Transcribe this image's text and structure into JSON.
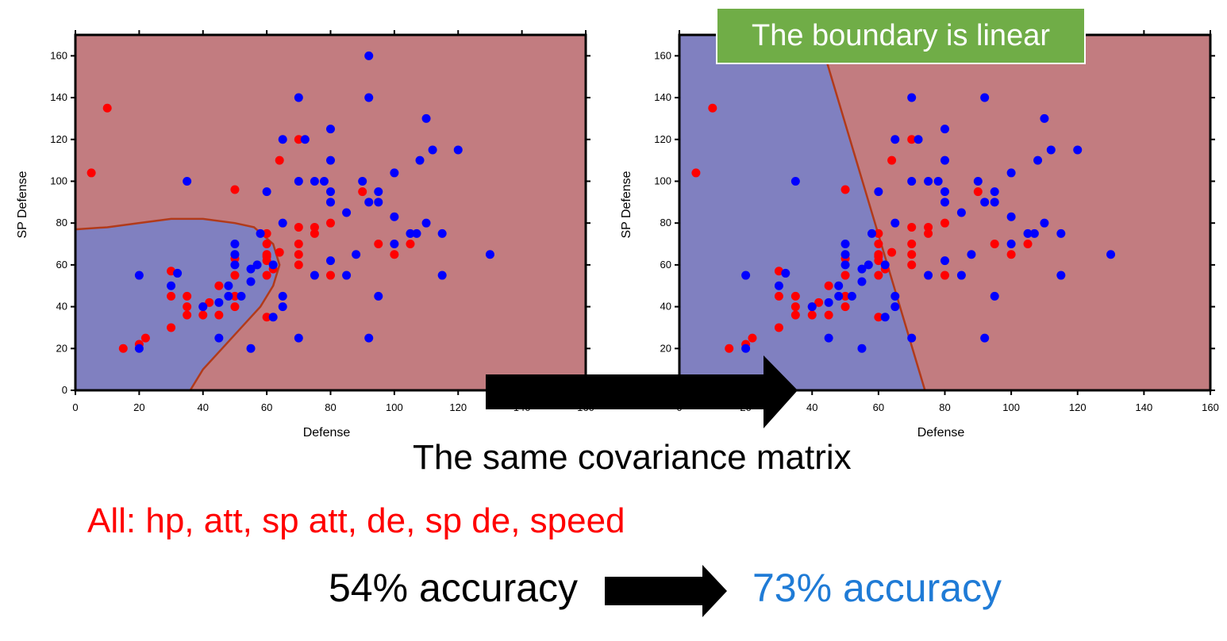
{
  "chart_data": [
    {
      "type": "scatter",
      "panel": "left",
      "title": "",
      "xlabel": "Defense",
      "ylabel": "SP Defense",
      "xlim": [
        0,
        160
      ],
      "ylim": [
        0,
        170
      ],
      "xticks": [
        "0",
        "20",
        "40",
        "60",
        "80",
        "100",
        "120",
        "140",
        "160"
      ],
      "yticks": [
        "0",
        "20",
        "40",
        "60",
        "80",
        "100",
        "120",
        "140",
        "160"
      ],
      "background_regions": {
        "blue_class": "#8080c0",
        "red_class": "#c27c80",
        "boundary": "quadratic curve"
      },
      "boundary_points": [
        [
          0,
          77
        ],
        [
          10,
          78
        ],
        [
          20,
          80
        ],
        [
          30,
          82
        ],
        [
          40,
          82
        ],
        [
          50,
          80
        ],
        [
          56,
          78
        ],
        [
          62,
          70
        ],
        [
          64,
          60
        ],
        [
          62,
          50
        ],
        [
          58,
          40
        ],
        [
          52,
          30
        ],
        [
          46,
          20
        ],
        [
          40,
          10
        ],
        [
          36,
          0
        ]
      ],
      "series": [
        {
          "color": "#ff0000",
          "points": [
            [
              5,
              104
            ],
            [
              10,
              135
            ],
            [
              15,
              20
            ],
            [
              20,
              22
            ],
            [
              22,
              25
            ],
            [
              30,
              30
            ],
            [
              30,
              45
            ],
            [
              30,
              57
            ],
            [
              35,
              45
            ],
            [
              35,
              40
            ],
            [
              35,
              36
            ],
            [
              40,
              40
            ],
            [
              42,
              42
            ],
            [
              40,
              36
            ],
            [
              45,
              36
            ],
            [
              45,
              50
            ],
            [
              50,
              40
            ],
            [
              50,
              45
            ],
            [
              50,
              55
            ],
            [
              50,
              63
            ],
            [
              50,
              96
            ],
            [
              60,
              55
            ],
            [
              60,
              62
            ],
            [
              60,
              64
            ],
            [
              60,
              65
            ],
            [
              60,
              70
            ],
            [
              60,
              75
            ],
            [
              60,
              35
            ],
            [
              62,
              58
            ],
            [
              64,
              66
            ],
            [
              64,
              110
            ],
            [
              70,
              78
            ],
            [
              70,
              70
            ],
            [
              70,
              65
            ],
            [
              70,
              60
            ],
            [
              70,
              120
            ],
            [
              75,
              75
            ],
            [
              75,
              78
            ],
            [
              80,
              55
            ],
            [
              80,
              80
            ],
            [
              90,
              95
            ],
            [
              95,
              70
            ],
            [
              100,
              65
            ],
            [
              105,
              70
            ]
          ]
        },
        {
          "color": "#0000ff",
          "points": [
            [
              20,
              55
            ],
            [
              20,
              20
            ],
            [
              30,
              50
            ],
            [
              32,
              56
            ],
            [
              35,
              100
            ],
            [
              40,
              40
            ],
            [
              45,
              42
            ],
            [
              45,
              25
            ],
            [
              48,
              45
            ],
            [
              48,
              50
            ],
            [
              50,
              60
            ],
            [
              50,
              65
            ],
            [
              50,
              70
            ],
            [
              52,
              45
            ],
            [
              55,
              20
            ],
            [
              55,
              52
            ],
            [
              55,
              58
            ],
            [
              57,
              60
            ],
            [
              58,
              75
            ],
            [
              60,
              95
            ],
            [
              62,
              60
            ],
            [
              62,
              35
            ],
            [
              65,
              120
            ],
            [
              65,
              80
            ],
            [
              65,
              40
            ],
            [
              65,
              45
            ],
            [
              70,
              140
            ],
            [
              70,
              100
            ],
            [
              70,
              25
            ],
            [
              72,
              120
            ],
            [
              75,
              55
            ],
            [
              75,
              100
            ],
            [
              78,
              100
            ],
            [
              80,
              125
            ],
            [
              80,
              110
            ],
            [
              80,
              95
            ],
            [
              80,
              90
            ],
            [
              80,
              62
            ],
            [
              85,
              55
            ],
            [
              85,
              85
            ],
            [
              88,
              65
            ],
            [
              90,
              100
            ],
            [
              92,
              90
            ],
            [
              92,
              160
            ],
            [
              92,
              140
            ],
            [
              92,
              25
            ],
            [
              95,
              90
            ],
            [
              95,
              45
            ],
            [
              95,
              95
            ],
            [
              100,
              104
            ],
            [
              100,
              83
            ],
            [
              100,
              70
            ],
            [
              105,
              75
            ],
            [
              107,
              75
            ],
            [
              108,
              110
            ],
            [
              110,
              130
            ],
            [
              110,
              80
            ],
            [
              112,
              115
            ],
            [
              115,
              75
            ],
            [
              115,
              55
            ],
            [
              120,
              115
            ],
            [
              130,
              65
            ]
          ]
        }
      ]
    },
    {
      "type": "scatter",
      "panel": "right",
      "title": "",
      "xlabel": "Defense",
      "ylabel": "SP Defense",
      "xlim": [
        0,
        160
      ],
      "ylim": [
        0,
        170
      ],
      "xticks": [
        "0",
        "20",
        "40",
        "60",
        "80",
        "100",
        "120",
        "140",
        "160"
      ],
      "yticks": [
        "0",
        "20",
        "40",
        "60",
        "80",
        "100",
        "120",
        "140",
        "160"
      ],
      "background_regions": {
        "blue_class": "#8080c0",
        "red_class": "#c27c80",
        "boundary": "straight line"
      },
      "boundary_points": [
        [
          42,
          170
        ],
        [
          74,
          0
        ]
      ],
      "series": [
        {
          "color": "#ff0000",
          "points": [
            [
              5,
              104
            ],
            [
              10,
              135
            ],
            [
              15,
              20
            ],
            [
              20,
              22
            ],
            [
              22,
              25
            ],
            [
              30,
              30
            ],
            [
              30,
              45
            ],
            [
              30,
              57
            ],
            [
              35,
              45
            ],
            [
              35,
              40
            ],
            [
              35,
              36
            ],
            [
              40,
              40
            ],
            [
              42,
              42
            ],
            [
              40,
              36
            ],
            [
              45,
              36
            ],
            [
              45,
              50
            ],
            [
              50,
              40
            ],
            [
              50,
              45
            ],
            [
              50,
              55
            ],
            [
              50,
              63
            ],
            [
              50,
              96
            ],
            [
              60,
              55
            ],
            [
              60,
              62
            ],
            [
              60,
              64
            ],
            [
              60,
              65
            ],
            [
              60,
              70
            ],
            [
              60,
              75
            ],
            [
              60,
              35
            ],
            [
              62,
              58
            ],
            [
              64,
              66
            ],
            [
              64,
              110
            ],
            [
              70,
              78
            ],
            [
              70,
              70
            ],
            [
              70,
              65
            ],
            [
              70,
              60
            ],
            [
              70,
              120
            ],
            [
              75,
              75
            ],
            [
              75,
              78
            ],
            [
              80,
              55
            ],
            [
              80,
              80
            ],
            [
              90,
              95
            ],
            [
              95,
              70
            ],
            [
              100,
              65
            ],
            [
              105,
              70
            ]
          ]
        },
        {
          "color": "#0000ff",
          "points": [
            [
              20,
              55
            ],
            [
              20,
              20
            ],
            [
              30,
              50
            ],
            [
              32,
              56
            ],
            [
              35,
              100
            ],
            [
              40,
              40
            ],
            [
              45,
              42
            ],
            [
              45,
              25
            ],
            [
              48,
              45
            ],
            [
              48,
              50
            ],
            [
              50,
              60
            ],
            [
              50,
              65
            ],
            [
              50,
              70
            ],
            [
              52,
              45
            ],
            [
              55,
              20
            ],
            [
              55,
              52
            ],
            [
              55,
              58
            ],
            [
              57,
              60
            ],
            [
              58,
              75
            ],
            [
              60,
              95
            ],
            [
              62,
              60
            ],
            [
              62,
              35
            ],
            [
              65,
              120
            ],
            [
              65,
              80
            ],
            [
              65,
              40
            ],
            [
              65,
              45
            ],
            [
              70,
              140
            ],
            [
              70,
              100
            ],
            [
              70,
              25
            ],
            [
              72,
              120
            ],
            [
              75,
              55
            ],
            [
              75,
              100
            ],
            [
              78,
              100
            ],
            [
              80,
              125
            ],
            [
              80,
              110
            ],
            [
              80,
              95
            ],
            [
              80,
              90
            ],
            [
              80,
              62
            ],
            [
              85,
              55
            ],
            [
              85,
              85
            ],
            [
              88,
              65
            ],
            [
              90,
              100
            ],
            [
              92,
              90
            ],
            [
              92,
              160
            ],
            [
              92,
              140
            ],
            [
              92,
              25
            ],
            [
              95,
              90
            ],
            [
              95,
              45
            ],
            [
              95,
              95
            ],
            [
              100,
              104
            ],
            [
              100,
              83
            ],
            [
              100,
              70
            ],
            [
              105,
              75
            ],
            [
              107,
              75
            ],
            [
              108,
              110
            ],
            [
              110,
              130
            ],
            [
              110,
              80
            ],
            [
              112,
              115
            ],
            [
              115,
              75
            ],
            [
              115,
              55
            ],
            [
              120,
              115
            ],
            [
              130,
              65
            ]
          ]
        }
      ]
    }
  ],
  "callout": "The boundary is linear",
  "covariance_caption": "The same covariance matrix",
  "features_caption": "All: hp, att, sp att, de, sp de, speed",
  "accuracy_before": "54% accuracy",
  "accuracy_after": "73% accuracy",
  "colors": {
    "callout": "#70ad47",
    "features": "#ff0000",
    "accuracy_after": "#1f7bd6"
  }
}
